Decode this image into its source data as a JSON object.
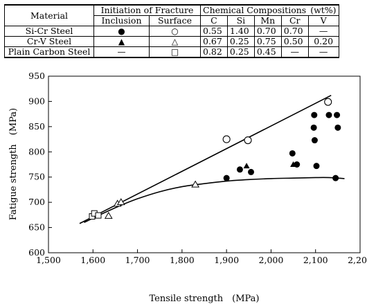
{
  "table": {
    "header": {
      "material": "Material",
      "initiation": "Initiation of Fracture",
      "inclusion": "Inclusion",
      "surface": "Surface",
      "chemical": "Chemical Compositions",
      "unit": "(wt%)",
      "elements": [
        "C",
        "Si",
        "Mn",
        "Cr",
        "V"
      ]
    },
    "rows": [
      {
        "material": "Si-Cr Steel",
        "inclusion_mark": "●",
        "surface_mark": "○",
        "values": [
          "0.55",
          "1.40",
          "0.70",
          "0.70",
          "—"
        ]
      },
      {
        "material": "Cr-V Steel",
        "inclusion_mark": "▲",
        "surface_mark": "△",
        "values": [
          "0.67",
          "0.25",
          "0.75",
          "0.50",
          "0.20"
        ]
      },
      {
        "material": "Plain Carbon Steel",
        "inclusion_mark": "—",
        "surface_mark": "□",
        "values": [
          "0.82",
          "0.25",
          "0.45",
          "—",
          "—"
        ]
      }
    ]
  },
  "chart_data": {
    "type": "scatter",
    "xlabel": "Tensile strength　(MPa)",
    "ylabel": "Fatigue strength　(MPa)",
    "xlim": [
      1500,
      2200
    ],
    "ylim": [
      600,
      950
    ],
    "xticks": [
      1500,
      1600,
      1700,
      1800,
      1900,
      2000,
      2100,
      2200
    ],
    "xtick_labels": [
      "1,500",
      "1,600",
      "1,700",
      "1,800",
      "1,900",
      "2,000",
      "2,100",
      "2,200"
    ],
    "yticks": [
      600,
      650,
      700,
      750,
      800,
      850,
      900,
      950
    ],
    "ytick_labels": [
      "600",
      "650",
      "700",
      "750",
      "800",
      "850",
      "900",
      "950"
    ],
    "grid": false,
    "series": [
      {
        "marker": "filled-circle",
        "points": [
          [
            1900,
            748
          ],
          [
            1930,
            765
          ],
          [
            1955,
            760
          ],
          [
            2048,
            797
          ],
          [
            2058,
            775
          ],
          [
            2097,
            873
          ],
          [
            2096,
            848
          ],
          [
            2098,
            823
          ],
          [
            2102,
            772
          ],
          [
            2130,
            873
          ],
          [
            2148,
            873
          ],
          [
            2150,
            848
          ],
          [
            2145,
            748
          ]
        ]
      },
      {
        "marker": "open-circle",
        "points": [
          [
            1900,
            825
          ],
          [
            1948,
            823
          ],
          [
            2128,
            899
          ]
        ]
      },
      {
        "marker": "filled-triangle",
        "points": [
          [
            1945,
            772
          ],
          [
            2050,
            775
          ]
        ]
      },
      {
        "marker": "open-triangle",
        "points": [
          [
            1635,
            673
          ],
          [
            1655,
            697
          ],
          [
            1663,
            700
          ],
          [
            1830,
            735
          ]
        ]
      },
      {
        "marker": "open-square",
        "points": [
          [
            1598,
            672
          ],
          [
            1603,
            678
          ],
          [
            1612,
            674
          ]
        ]
      }
    ],
    "lines": [
      {
        "kind": "straight",
        "points": [
          [
            1570,
            658
          ],
          [
            2135,
            912
          ]
        ]
      },
      {
        "kind": "curve",
        "points": [
          [
            1580,
            660
          ],
          [
            1620,
            677
          ],
          [
            1660,
            693
          ],
          [
            1700,
            707
          ],
          [
            1750,
            721
          ],
          [
            1800,
            731
          ],
          [
            1850,
            737
          ],
          [
            1900,
            742
          ],
          [
            1950,
            745
          ],
          [
            2000,
            747
          ],
          [
            2050,
            748
          ],
          [
            2100,
            749
          ],
          [
            2130,
            749
          ],
          [
            2165,
            747
          ]
        ]
      }
    ]
  }
}
